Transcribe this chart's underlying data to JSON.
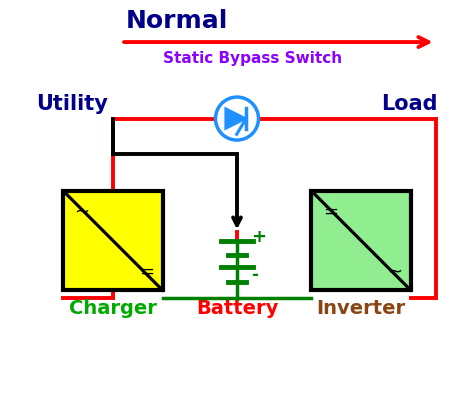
{
  "bg_color": "#ffffff",
  "normal_text": "Normal",
  "normal_color": "#00008B",
  "bypass_text": "Static Bypass Switch",
  "bypass_color": "#8B00FF",
  "utility_text": "Utility",
  "utility_color": "#00008B",
  "load_text": "Load",
  "load_color": "#00008B",
  "charger_text": "Charger",
  "charger_color": "#00AA00",
  "inverter_text": "Inverter",
  "inverter_color": "#8B4513",
  "battery_text": "Battery",
  "battery_color": "#FF0000",
  "line_red": "#FF0000",
  "line_black": "#000000",
  "transistor_color": "#1E90FF",
  "charger_fill": "#FFFF00",
  "inverter_fill": "#90EE90",
  "box_outline": "#000000",
  "green_color": "#008000"
}
